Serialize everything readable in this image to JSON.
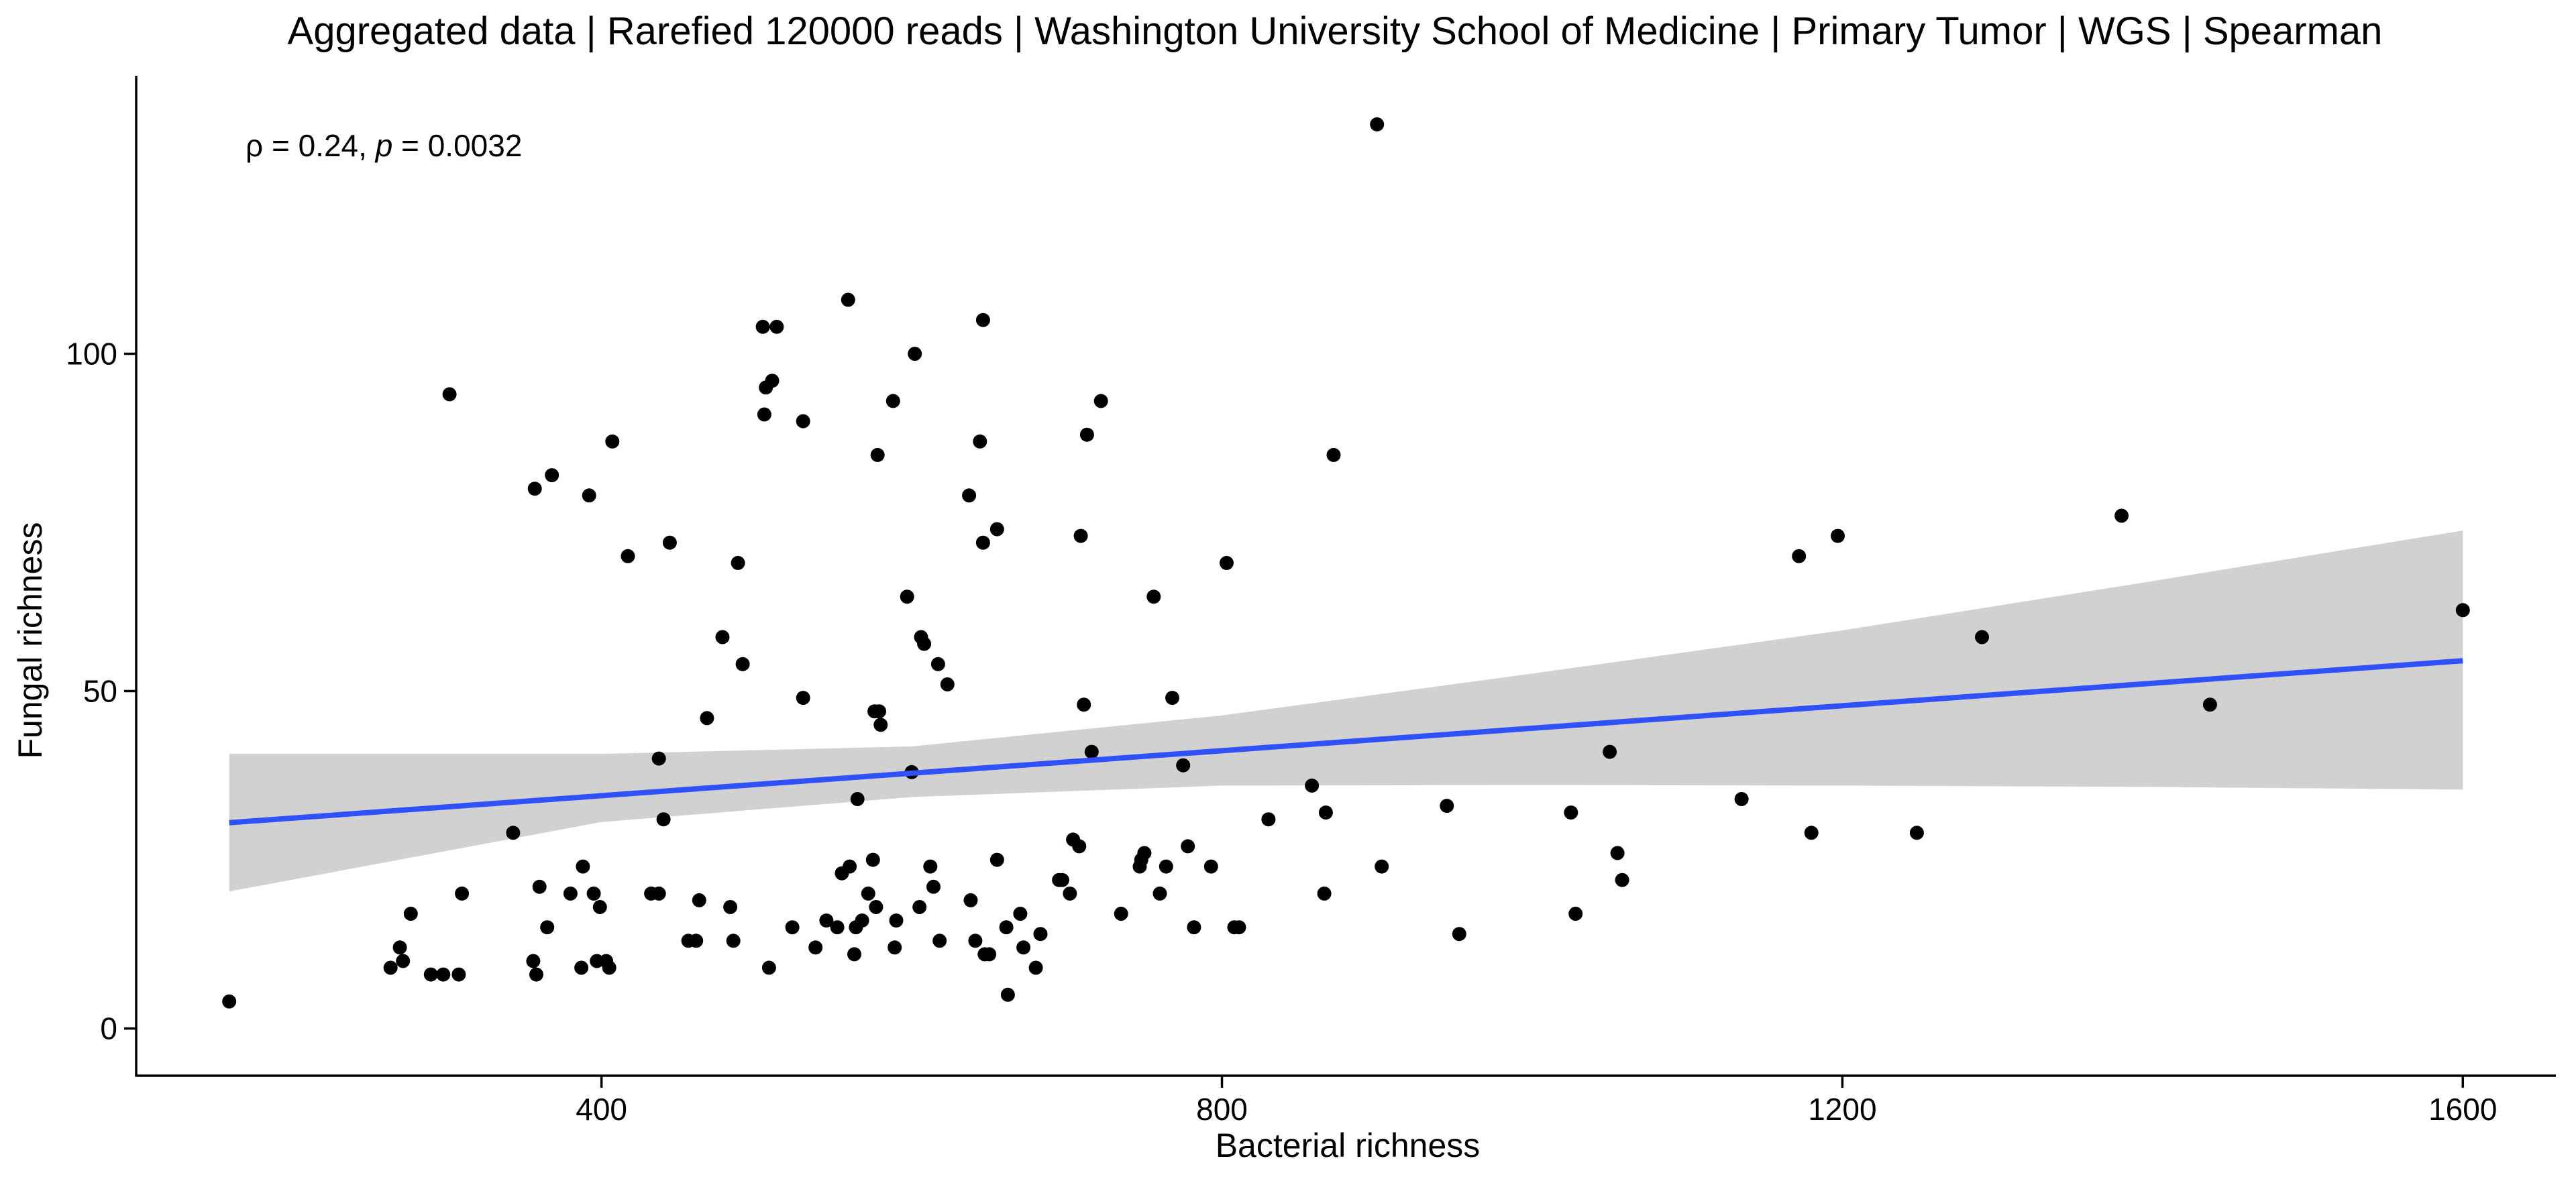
{
  "chart_data": {
    "type": "scatter",
    "title": "Aggregated data | Rarefied 120000 reads | Washington University School of Medicine | Primary Tumor | WGS | Spearman",
    "xlabel": "Bacterial richness",
    "ylabel": "Fungal richness",
    "xlim": [
      100,
      1660
    ],
    "ylim": [
      -7,
      141
    ],
    "xticks": [
      400,
      800,
      1200,
      1600
    ],
    "yticks": [
      0,
      50,
      100
    ],
    "grid": false,
    "annotation": {
      "rho_symbol": "ρ",
      "rho_text": " = 0.24, ",
      "p_symbol": "p",
      "p_text": " = 0.0032"
    },
    "fit": {
      "method": "linear",
      "x": [
        160,
        1600
      ],
      "y": [
        30.5,
        54.5
      ],
      "ci_x": [
        160,
        400,
        600,
        800,
        1000,
        1200,
        1400,
        1600
      ],
      "ci_lower": [
        20.3,
        30.6,
        34.3,
        36.0,
        36.1,
        36.0,
        35.8,
        35.4
      ],
      "ci_upper": [
        40.7,
        40.7,
        41.8,
        46.4,
        52.6,
        59.0,
        66.3,
        73.8
      ],
      "line_color": "#3050F8",
      "band_color": "#CFCFCF"
    },
    "point_color": "#000000",
    "points": [
      {
        "x": 160,
        "y": 4
      },
      {
        "x": 264,
        "y": 9
      },
      {
        "x": 270,
        "y": 12
      },
      {
        "x": 272,
        "y": 10
      },
      {
        "x": 277,
        "y": 17
      },
      {
        "x": 290,
        "y": 8
      },
      {
        "x": 298,
        "y": 8
      },
      {
        "x": 302,
        "y": 94
      },
      {
        "x": 308,
        "y": 8
      },
      {
        "x": 310,
        "y": 20
      },
      {
        "x": 343,
        "y": 29
      },
      {
        "x": 356,
        "y": 10
      },
      {
        "x": 357,
        "y": 80
      },
      {
        "x": 358,
        "y": 8
      },
      {
        "x": 360,
        "y": 21
      },
      {
        "x": 365,
        "y": 15
      },
      {
        "x": 368,
        "y": 82
      },
      {
        "x": 380,
        "y": 20
      },
      {
        "x": 387,
        "y": 9
      },
      {
        "x": 388,
        "y": 24
      },
      {
        "x": 392,
        "y": 79
      },
      {
        "x": 395,
        "y": 20
      },
      {
        "x": 397,
        "y": 10
      },
      {
        "x": 399,
        "y": 18
      },
      {
        "x": 403,
        "y": 10
      },
      {
        "x": 405,
        "y": 9
      },
      {
        "x": 407,
        "y": 87
      },
      {
        "x": 417,
        "y": 70
      },
      {
        "x": 432,
        "y": 20
      },
      {
        "x": 437,
        "y": 40
      },
      {
        "x": 437,
        "y": 20
      },
      {
        "x": 440,
        "y": 31
      },
      {
        "x": 444,
        "y": 72
      },
      {
        "x": 456,
        "y": 13
      },
      {
        "x": 461,
        "y": 13
      },
      {
        "x": 463,
        "y": 19
      },
      {
        "x": 468,
        "y": 46
      },
      {
        "x": 478,
        "y": 58
      },
      {
        "x": 483,
        "y": 18
      },
      {
        "x": 485,
        "y": 13
      },
      {
        "x": 488,
        "y": 69
      },
      {
        "x": 491,
        "y": 54
      },
      {
        "x": 504,
        "y": 104
      },
      {
        "x": 505,
        "y": 91
      },
      {
        "x": 506,
        "y": 95
      },
      {
        "x": 508,
        "y": 9
      },
      {
        "x": 510,
        "y": 96
      },
      {
        "x": 513,
        "y": 104
      },
      {
        "x": 523,
        "y": 15
      },
      {
        "x": 530,
        "y": 49
      },
      {
        "x": 530,
        "y": 90
      },
      {
        "x": 538,
        "y": 12
      },
      {
        "x": 545,
        "y": 16
      },
      {
        "x": 552,
        "y": 15
      },
      {
        "x": 555,
        "y": 23
      },
      {
        "x": 559,
        "y": 108
      },
      {
        "x": 560,
        "y": 24
      },
      {
        "x": 563,
        "y": 11
      },
      {
        "x": 564,
        "y": 15
      },
      {
        "x": 565,
        "y": 34
      },
      {
        "x": 568,
        "y": 16
      },
      {
        "x": 572,
        "y": 20
      },
      {
        "x": 575,
        "y": 25
      },
      {
        "x": 576,
        "y": 47
      },
      {
        "x": 577,
        "y": 18
      },
      {
        "x": 578,
        "y": 85
      },
      {
        "x": 579,
        "y": 47
      },
      {
        "x": 580,
        "y": 45
      },
      {
        "x": 588,
        "y": 93
      },
      {
        "x": 589,
        "y": 12
      },
      {
        "x": 590,
        "y": 16
      },
      {
        "x": 597,
        "y": 64
      },
      {
        "x": 600,
        "y": 38
      },
      {
        "x": 602,
        "y": 100
      },
      {
        "x": 605,
        "y": 18
      },
      {
        "x": 606,
        "y": 58
      },
      {
        "x": 608,
        "y": 57
      },
      {
        "x": 612,
        "y": 24
      },
      {
        "x": 614,
        "y": 21
      },
      {
        "x": 617,
        "y": 54
      },
      {
        "x": 618,
        "y": 13
      },
      {
        "x": 623,
        "y": 51
      },
      {
        "x": 637,
        "y": 79
      },
      {
        "x": 638,
        "y": 19
      },
      {
        "x": 641,
        "y": 13
      },
      {
        "x": 644,
        "y": 87
      },
      {
        "x": 646,
        "y": 72
      },
      {
        "x": 646,
        "y": 105
      },
      {
        "x": 647,
        "y": 11
      },
      {
        "x": 650,
        "y": 11
      },
      {
        "x": 655,
        "y": 74
      },
      {
        "x": 655,
        "y": 25
      },
      {
        "x": 661,
        "y": 15
      },
      {
        "x": 662,
        "y": 5
      },
      {
        "x": 670,
        "y": 17
      },
      {
        "x": 672,
        "y": 12
      },
      {
        "x": 680,
        "y": 9
      },
      {
        "x": 683,
        "y": 14
      },
      {
        "x": 695,
        "y": 22
      },
      {
        "x": 697,
        "y": 22
      },
      {
        "x": 702,
        "y": 20
      },
      {
        "x": 704,
        "y": 28
      },
      {
        "x": 708,
        "y": 27
      },
      {
        "x": 709,
        "y": 73
      },
      {
        "x": 711,
        "y": 48
      },
      {
        "x": 713,
        "y": 88
      },
      {
        "x": 716,
        "y": 41
      },
      {
        "x": 722,
        "y": 93
      },
      {
        "x": 735,
        "y": 17
      },
      {
        "x": 747,
        "y": 24
      },
      {
        "x": 748,
        "y": 25
      },
      {
        "x": 750,
        "y": 26
      },
      {
        "x": 756,
        "y": 64
      },
      {
        "x": 760,
        "y": 20
      },
      {
        "x": 764,
        "y": 24
      },
      {
        "x": 768,
        "y": 49
      },
      {
        "x": 775,
        "y": 39
      },
      {
        "x": 778,
        "y": 27
      },
      {
        "x": 782,
        "y": 15
      },
      {
        "x": 793,
        "y": 24
      },
      {
        "x": 803,
        "y": 69
      },
      {
        "x": 808,
        "y": 15
      },
      {
        "x": 811,
        "y": 15
      },
      {
        "x": 830,
        "y": 31
      },
      {
        "x": 858,
        "y": 36
      },
      {
        "x": 866,
        "y": 20
      },
      {
        "x": 867,
        "y": 32
      },
      {
        "x": 872,
        "y": 85
      },
      {
        "x": 900,
        "y": 134
      },
      {
        "x": 903,
        "y": 24
      },
      {
        "x": 945,
        "y": 33
      },
      {
        "x": 953,
        "y": 14
      },
      {
        "x": 1025,
        "y": 32
      },
      {
        "x": 1028,
        "y": 17
      },
      {
        "x": 1050,
        "y": 41
      },
      {
        "x": 1055,
        "y": 26
      },
      {
        "x": 1058,
        "y": 22
      },
      {
        "x": 1135,
        "y": 34
      },
      {
        "x": 1172,
        "y": 70
      },
      {
        "x": 1180,
        "y": 29
      },
      {
        "x": 1197,
        "y": 73
      },
      {
        "x": 1248,
        "y": 29
      },
      {
        "x": 1290,
        "y": 58
      },
      {
        "x": 1380,
        "y": 76
      },
      {
        "x": 1437,
        "y": 48
      },
      {
        "x": 1600,
        "y": 62
      }
    ]
  }
}
